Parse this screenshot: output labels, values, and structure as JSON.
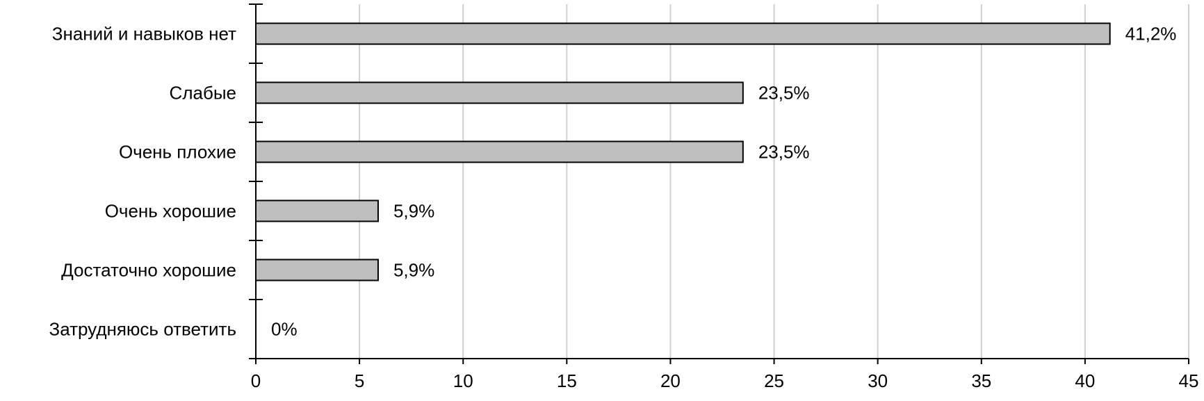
{
  "chart_data": {
    "type": "hbar",
    "categories": [
      "Знаний и навыков нет",
      "Слабые",
      "Очень плохие",
      "Очень хорошие",
      "Достаточно хорошие",
      "Затрудняюсь ответить"
    ],
    "values": [
      41.2,
      23.5,
      23.5,
      5.9,
      5.9,
      0
    ],
    "value_labels": [
      "41,2%",
      "23,5%",
      "23,5%",
      "5,9%",
      "5,9%",
      "0%"
    ],
    "color": "#bfbfbf",
    "xlim": [
      0,
      45
    ],
    "xticks": [
      0,
      5,
      10,
      15,
      20,
      25,
      30,
      35,
      40,
      45
    ],
    "grid": true
  }
}
